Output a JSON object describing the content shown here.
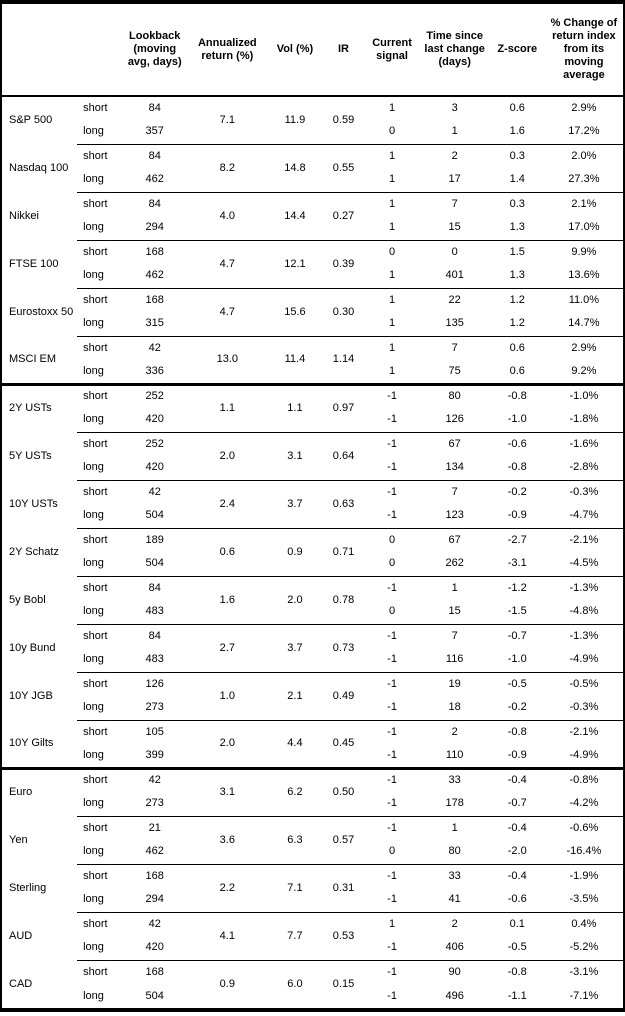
{
  "table": {
    "horizon_labels": [
      "short",
      "long"
    ],
    "headers": {
      "asset": "",
      "horizon": "",
      "lookback": "Lookback\n(moving\navg, days)",
      "annualized_return": "Annualized\nreturn (%)",
      "vol": "Vol (%)",
      "ir": "IR",
      "signal": "Current\nsignal",
      "time_since": "Time since\nlast change\n(days)",
      "z_score": "Z-score",
      "pct_change": "% Change of\nreturn index\nfrom its\nmoving\naverage"
    },
    "sections": [
      {
        "id": "equities",
        "assets": [
          {
            "name": "S&P 500",
            "annualized_return": "7.1",
            "vol": "11.9",
            "ir": "0.59",
            "short": {
              "lookback": "84",
              "signal": "1",
              "days_since_change": "3",
              "z_score": "0.6",
              "pct_change": "2.9%"
            },
            "long": {
              "lookback": "357",
              "signal": "0",
              "days_since_change": "1",
              "z_score": "1.6",
              "pct_change": "17.2%"
            }
          },
          {
            "name": "Nasdaq 100",
            "annualized_return": "8.2",
            "vol": "14.8",
            "ir": "0.55",
            "short": {
              "lookback": "84",
              "signal": "1",
              "days_since_change": "2",
              "z_score": "0.3",
              "pct_change": "2.0%"
            },
            "long": {
              "lookback": "462",
              "signal": "1",
              "days_since_change": "17",
              "z_score": "1.4",
              "pct_change": "27.3%"
            }
          },
          {
            "name": "Nikkei",
            "annualized_return": "4.0",
            "vol": "14.4",
            "ir": "0.27",
            "short": {
              "lookback": "84",
              "signal": "1",
              "days_since_change": "7",
              "z_score": "0.3",
              "pct_change": "2.1%"
            },
            "long": {
              "lookback": "294",
              "signal": "1",
              "days_since_change": "15",
              "z_score": "1.3",
              "pct_change": "17.0%"
            }
          },
          {
            "name": "FTSE 100",
            "annualized_return": "4.7",
            "vol": "12.1",
            "ir": "0.39",
            "short": {
              "lookback": "168",
              "signal": "0",
              "days_since_change": "0",
              "z_score": "1.5",
              "pct_change": "9.9%"
            },
            "long": {
              "lookback": "462",
              "signal": "1",
              "days_since_change": "401",
              "z_score": "1.3",
              "pct_change": "13.6%"
            }
          },
          {
            "name": "Eurostoxx 50",
            "annualized_return": "4.7",
            "vol": "15.6",
            "ir": "0.30",
            "short": {
              "lookback": "168",
              "signal": "1",
              "days_since_change": "22",
              "z_score": "1.2",
              "pct_change": "11.0%"
            },
            "long": {
              "lookback": "315",
              "signal": "1",
              "days_since_change": "135",
              "z_score": "1.2",
              "pct_change": "14.7%"
            }
          },
          {
            "name": "MSCI EM",
            "annualized_return": "13.0",
            "vol": "11.4",
            "ir": "1.14",
            "short": {
              "lookback": "42",
              "signal": "1",
              "days_since_change": "7",
              "z_score": "0.6",
              "pct_change": "2.9%"
            },
            "long": {
              "lookback": "336",
              "signal": "1",
              "days_since_change": "75",
              "z_score": "0.6",
              "pct_change": "9.2%"
            }
          }
        ]
      },
      {
        "id": "bonds",
        "assets": [
          {
            "name": "2Y USTs",
            "annualized_return": "1.1",
            "vol": "1.1",
            "ir": "0.97",
            "short": {
              "lookback": "252",
              "signal": "-1",
              "days_since_change": "80",
              "z_score": "-0.8",
              "pct_change": "-1.0%"
            },
            "long": {
              "lookback": "420",
              "signal": "-1",
              "days_since_change": "126",
              "z_score": "-1.0",
              "pct_change": "-1.8%"
            }
          },
          {
            "name": "5Y USTs",
            "annualized_return": "2.0",
            "vol": "3.1",
            "ir": "0.64",
            "short": {
              "lookback": "252",
              "signal": "-1",
              "days_since_change": "67",
              "z_score": "-0.6",
              "pct_change": "-1.6%"
            },
            "long": {
              "lookback": "420",
              "signal": "-1",
              "days_since_change": "134",
              "z_score": "-0.8",
              "pct_change": "-2.8%"
            }
          },
          {
            "name": "10Y USTs",
            "annualized_return": "2.4",
            "vol": "3.7",
            "ir": "0.63",
            "short": {
              "lookback": "42",
              "signal": "-1",
              "days_since_change": "7",
              "z_score": "-0.2",
              "pct_change": "-0.3%"
            },
            "long": {
              "lookback": "504",
              "signal": "-1",
              "days_since_change": "123",
              "z_score": "-0.9",
              "pct_change": "-4.7%"
            }
          },
          {
            "name": "2Y Schatz",
            "annualized_return": "0.6",
            "vol": "0.9",
            "ir": "0.71",
            "short": {
              "lookback": "189",
              "signal": "0",
              "days_since_change": "67",
              "z_score": "-2.7",
              "pct_change": "-2.1%"
            },
            "long": {
              "lookback": "504",
              "signal": "0",
              "days_since_change": "262",
              "z_score": "-3.1",
              "pct_change": "-4.5%"
            }
          },
          {
            "name": "5y Bobl",
            "annualized_return": "1.6",
            "vol": "2.0",
            "ir": "0.78",
            "short": {
              "lookback": "84",
              "signal": "-1",
              "days_since_change": "1",
              "z_score": "-1.2",
              "pct_change": "-1.3%"
            },
            "long": {
              "lookback": "483",
              "signal": "0",
              "days_since_change": "15",
              "z_score": "-1.5",
              "pct_change": "-4.8%"
            }
          },
          {
            "name": "10y Bund",
            "annualized_return": "2.7",
            "vol": "3.7",
            "ir": "0.73",
            "short": {
              "lookback": "84",
              "signal": "-1",
              "days_since_change": "7",
              "z_score": "-0.7",
              "pct_change": "-1.3%"
            },
            "long": {
              "lookback": "483",
              "signal": "-1",
              "days_since_change": "116",
              "z_score": "-1.0",
              "pct_change": "-4.9%"
            }
          },
          {
            "name": "10Y JGB",
            "annualized_return": "1.0",
            "vol": "2.1",
            "ir": "0.49",
            "short": {
              "lookback": "126",
              "signal": "-1",
              "days_since_change": "19",
              "z_score": "-0.5",
              "pct_change": "-0.5%"
            },
            "long": {
              "lookback": "273",
              "signal": "-1",
              "days_since_change": "18",
              "z_score": "-0.2",
              "pct_change": "-0.3%"
            }
          },
          {
            "name": "10Y Gilts",
            "annualized_return": "2.0",
            "vol": "4.4",
            "ir": "0.45",
            "short": {
              "lookback": "105",
              "signal": "-1",
              "days_since_change": "2",
              "z_score": "-0.8",
              "pct_change": "-2.1%"
            },
            "long": {
              "lookback": "399",
              "signal": "-1",
              "days_since_change": "110",
              "z_score": "-0.9",
              "pct_change": "-4.9%"
            }
          }
        ]
      },
      {
        "id": "fx",
        "assets": [
          {
            "name": "Euro",
            "annualized_return": "3.1",
            "vol": "6.2",
            "ir": "0.50",
            "short": {
              "lookback": "42",
              "signal": "-1",
              "days_since_change": "33",
              "z_score": "-0.4",
              "pct_change": "-0.8%"
            },
            "long": {
              "lookback": "273",
              "signal": "-1",
              "days_since_change": "178",
              "z_score": "-0.7",
              "pct_change": "-4.2%"
            }
          },
          {
            "name": "Yen",
            "annualized_return": "3.6",
            "vol": "6.3",
            "ir": "0.57",
            "short": {
              "lookback": "21",
              "signal": "-1",
              "days_since_change": "1",
              "z_score": "-0.4",
              "pct_change": "-0.6%"
            },
            "long": {
              "lookback": "462",
              "signal": "0",
              "days_since_change": "80",
              "z_score": "-2.0",
              "pct_change": "-16.4%"
            }
          },
          {
            "name": "Sterling",
            "annualized_return": "2.2",
            "vol": "7.1",
            "ir": "0.31",
            "short": {
              "lookback": "168",
              "signal": "-1",
              "days_since_change": "33",
              "z_score": "-0.4",
              "pct_change": "-1.9%"
            },
            "long": {
              "lookback": "294",
              "signal": "-1",
              "days_since_change": "41",
              "z_score": "-0.6",
              "pct_change": "-3.5%"
            }
          },
          {
            "name": "AUD",
            "annualized_return": "4.1",
            "vol": "7.7",
            "ir": "0.53",
            "short": {
              "lookback": "42",
              "signal": "1",
              "days_since_change": "2",
              "z_score": "0.1",
              "pct_change": "0.4%"
            },
            "long": {
              "lookback": "420",
              "signal": "-1",
              "days_since_change": "406",
              "z_score": "-0.5",
              "pct_change": "-5.2%"
            }
          },
          {
            "name": "CAD",
            "annualized_return": "0.9",
            "vol": "6.0",
            "ir": "0.15",
            "short": {
              "lookback": "168",
              "signal": "-1",
              "days_since_change": "90",
              "z_score": "-0.8",
              "pct_change": "-3.1%"
            },
            "long": {
              "lookback": "504",
              "signal": "-1",
              "days_since_change": "496",
              "z_score": "-1.1",
              "pct_change": "-7.1%"
            }
          }
        ]
      }
    ]
  }
}
